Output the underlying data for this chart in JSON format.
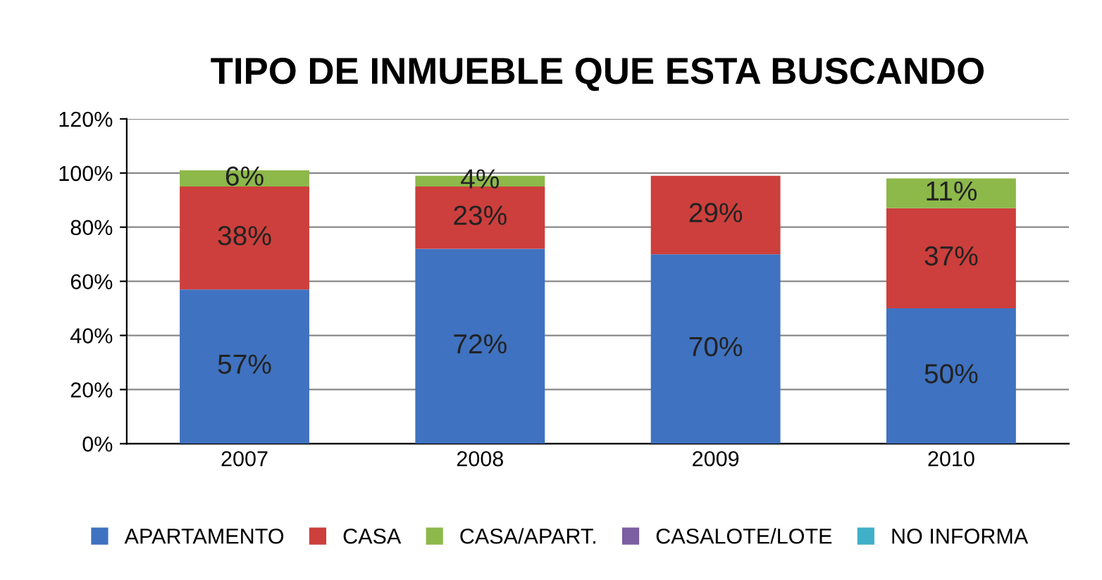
{
  "chart_data": {
    "type": "bar",
    "title": "TIPO DE INMUEBLE QUE ESTA BUSCANDO",
    "categories": [
      "2007",
      "2008",
      "2009",
      "2010"
    ],
    "stacked": true,
    "series": [
      {
        "name": "APARTAMENTO",
        "color": "#3f72c0",
        "values": [
          57,
          72,
          70,
          50
        ],
        "value_labels": [
          "57%",
          "72%",
          "70%",
          "50%"
        ]
      },
      {
        "name": "CASA",
        "color": "#cc3f3c",
        "values": [
          38,
          23,
          29,
          37
        ],
        "value_labels": [
          "38%",
          "23%",
          "29%",
          "37%"
        ]
      },
      {
        "name": "CASA/APART.",
        "color": "#8db84a",
        "values": [
          6,
          4,
          null,
          11
        ],
        "value_labels": [
          "6%",
          "4%",
          null,
          "11%"
        ]
      },
      {
        "name": "CASALOTE/LOTE",
        "color": "#7b5fa0",
        "values": [
          null,
          null,
          null,
          null
        ]
      },
      {
        "name": "NO INFORMA",
        "color": "#3fb0c8",
        "values": [
          null,
          null,
          null,
          null
        ]
      }
    ],
    "ylim": [
      0,
      120
    ],
    "yticks": [
      {
        "value": 0,
        "label": "0%"
      },
      {
        "value": 20,
        "label": "20%"
      },
      {
        "value": 40,
        "label": "40%"
      },
      {
        "value": 60,
        "label": "60%"
      },
      {
        "value": 80,
        "label": "80%"
      },
      {
        "value": 100,
        "label": "100%"
      },
      {
        "value": 120,
        "label": "120%"
      }
    ],
    "grid": "y",
    "legend": "bottom"
  }
}
